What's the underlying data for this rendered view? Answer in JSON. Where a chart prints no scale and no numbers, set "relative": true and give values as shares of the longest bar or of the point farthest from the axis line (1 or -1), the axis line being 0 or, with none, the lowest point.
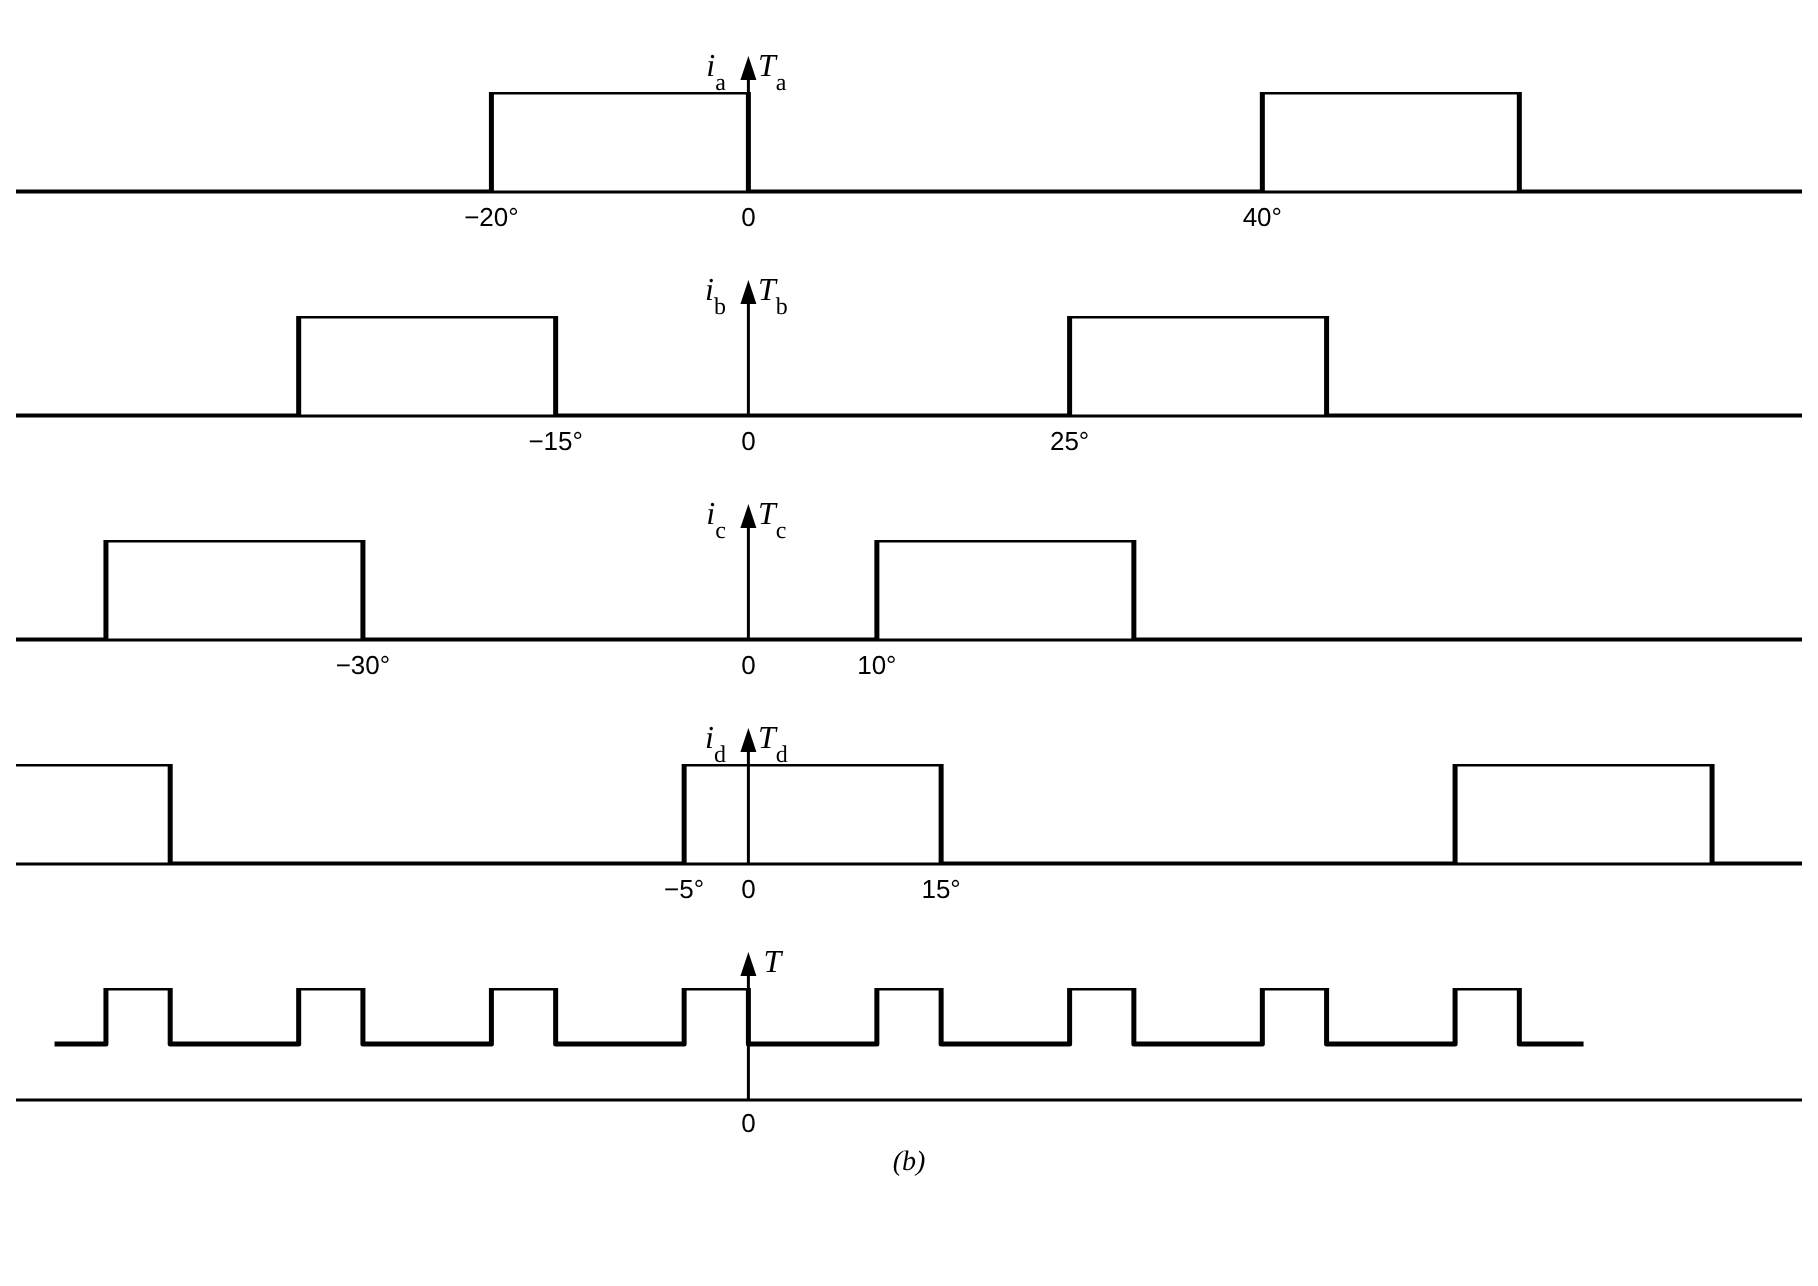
{
  "chart_data": [
    {
      "type": "step",
      "relative": true,
      "ylabel": "i$_{a}$   T$_{a}$",
      "xlim": [
        -57,
        82
      ],
      "xticks": [
        {
          "value": -20,
          "label": "−20°"
        },
        {
          "value": 0,
          "label": "0"
        },
        {
          "value": 40,
          "label": "40°"
        }
      ],
      "series": [
        {
          "color": "#000000",
          "x": [
            -57,
            -20,
            0,
            40,
            60,
            82
          ],
          "values": [
            0,
            1,
            0,
            1,
            0,
            0
          ]
        }
      ]
    },
    {
      "type": "step",
      "relative": true,
      "ylabel": "i$_{b}$   T$_{b}$",
      "xlim": [
        -57,
        82
      ],
      "xticks": [
        {
          "value": -15,
          "label": "−15°"
        },
        {
          "value": 0,
          "label": "0"
        },
        {
          "value": 25,
          "label": "25°"
        }
      ],
      "series": [
        {
          "color": "#000000",
          "x": [
            -57,
            -35,
            -15,
            25,
            45,
            82
          ],
          "values": [
            0,
            1,
            0,
            1,
            0,
            0
          ]
        }
      ]
    },
    {
      "type": "step",
      "relative": true,
      "ylabel": "i$_{c}$   T$_{c}$",
      "xlim": [
        -57,
        82
      ],
      "xticks": [
        {
          "value": -30,
          "label": "−30°"
        },
        {
          "value": 0,
          "label": "0"
        },
        {
          "value": 10,
          "label": "10°"
        }
      ],
      "series": [
        {
          "color": "#000000",
          "x": [
            -57,
            -50,
            -30,
            10,
            30,
            82
          ],
          "values": [
            0,
            1,
            0,
            1,
            0,
            0
          ]
        }
      ]
    },
    {
      "type": "step",
      "relative": true,
      "ylabel": "i$_{d}$   T$_{d}$",
      "xlim": [
        -57,
        82
      ],
      "xticks": [
        {
          "value": -5,
          "label": "−5°"
        },
        {
          "value": 0,
          "label": "0"
        },
        {
          "value": 15,
          "label": "15°"
        }
      ],
      "series": [
        {
          "color": "#000000",
          "x": [
            -57,
            -45,
            -5,
            15,
            55,
            75,
            82
          ],
          "values": [
            1,
            0,
            1,
            0,
            1,
            0,
            0
          ]
        }
      ]
    },
    {
      "type": "step",
      "relative": true,
      "ylabel": "T",
      "xlim": [
        -57,
        82
      ],
      "annotations": [
        "0",
        "(b)"
      ],
      "series": [
        {
          "color": "#000000",
          "x": [
            -54,
            -50,
            -45,
            -35,
            -30,
            -20,
            -15,
            -5,
            0,
            10,
            15,
            25,
            30,
            40,
            45,
            55,
            60,
            65
          ],
          "values": [
            0.5,
            1,
            0.5,
            1,
            0.5,
            1,
            0.5,
            1,
            0.5,
            1,
            0.5,
            1,
            0.5,
            1,
            0.5,
            1,
            0.5,
            0.5
          ]
        }
      ]
    }
  ]
}
